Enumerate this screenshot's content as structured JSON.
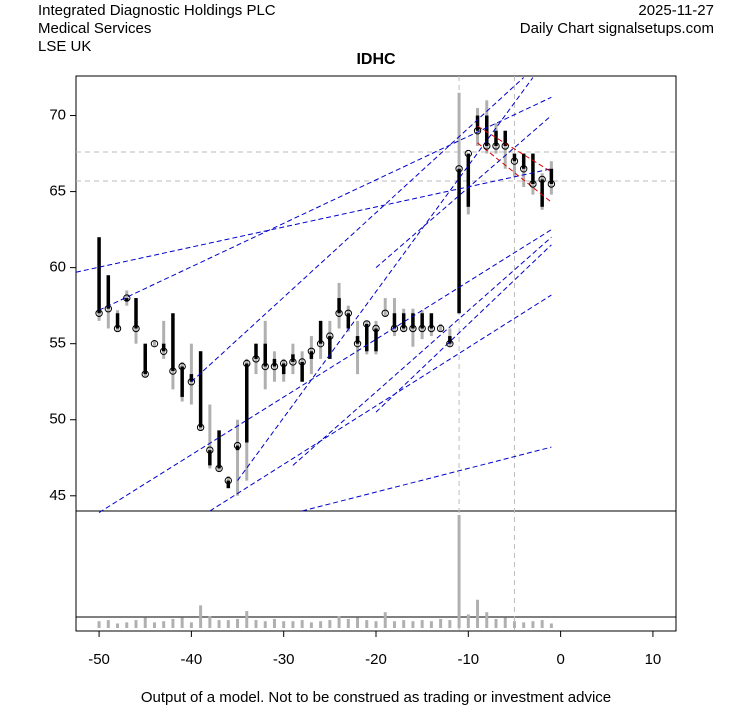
{
  "header": {
    "company": "Integrated Diagnostic Holdings PLC",
    "sector": "Medical Services",
    "exchange": "LSE UK",
    "date": "2025-11-27",
    "source": "Daily Chart signalsetups.com"
  },
  "footer": "Output of a model. Not to be construed as trading or investment advice",
  "chart_data": {
    "type": "candlestick",
    "title": "IDHC",
    "x": [
      -50,
      -49,
      -48,
      -47,
      -46,
      -45,
      -44,
      -43,
      -42,
      -41,
      -40,
      -39,
      -38,
      -37,
      -36,
      -35,
      -34,
      -33,
      -32,
      -31,
      -30,
      -29,
      -28,
      -27,
      -26,
      -25,
      -24,
      -23,
      -22,
      -21,
      -20,
      -19,
      -18,
      -17,
      -16,
      -15,
      -14,
      -13,
      -12,
      -11,
      -10,
      -9,
      -8,
      -7,
      -6,
      -5,
      -4,
      -3,
      -2,
      -1
    ],
    "open": [
      62,
      59.5,
      57,
      57.8,
      58,
      55,
      55,
      55,
      57,
      51.5,
      53,
      54.5,
      47,
      49.3,
      45.5,
      48,
      48.5,
      55,
      55,
      54,
      53,
      54.3,
      52.5,
      54,
      56.5,
      54,
      58,
      56,
      55.5,
      54.5,
      54.5,
      57,
      57,
      57,
      57,
      57,
      57,
      56,
      55.5,
      57,
      64,
      70,
      70,
      69,
      69,
      67.5,
      67.5,
      67.5,
      64,
      66.5
    ],
    "high": [
      62,
      59.5,
      57.2,
      58.5,
      58,
      55,
      55.2,
      56.5,
      57,
      53.8,
      55,
      54.5,
      51,
      49.3,
      46.3,
      50,
      54,
      55,
      56.5,
      54.5,
      54,
      55,
      54.5,
      55.5,
      56.5,
      56.5,
      59,
      57.5,
      56.5,
      56.5,
      56.5,
      58,
      58,
      57.3,
      57.3,
      57.2,
      57,
      56.3,
      56,
      71.5,
      67.5,
      70.5,
      71,
      69.5,
      69,
      67.5,
      67.5,
      67.5,
      66.2,
      67
    ],
    "low": [
      56.5,
      56,
      55.8,
      57.5,
      55,
      52.8,
      54.8,
      54,
      52,
      51.2,
      51,
      49.3,
      46.8,
      46.6,
      45.5,
      45,
      46,
      53,
      52,
      52.5,
      52.5,
      53,
      52.5,
      53,
      54,
      54,
      56,
      55.8,
      53,
      54.3,
      54.3,
      56.8,
      55.5,
      55.8,
      54.8,
      55.3,
      55.5,
      55.8,
      54.8,
      57,
      63.5,
      68,
      67.5,
      67.5,
      66.5,
      66,
      65.3,
      64.8,
      63.8,
      64.8
    ],
    "close": [
      57,
      57.3,
      56,
      58,
      56,
      53,
      55,
      54.5,
      53.2,
      53.5,
      52.5,
      49.5,
      48,
      46.8,
      46,
      48.3,
      53.7,
      54,
      53.5,
      53.5,
      53.7,
      53.8,
      53.8,
      54.5,
      55,
      55.5,
      57,
      57,
      55,
      56.3,
      56,
      57,
      56,
      56,
      56,
      56,
      56,
      56,
      55,
      66.5,
      67.5,
      69,
      68,
      68,
      68,
      67,
      66.5,
      65.5,
      65.8,
      65.5
    ],
    "volume": [
      6,
      7,
      4,
      5,
      7,
      9,
      5,
      6,
      8,
      9,
      5,
      20,
      10,
      7,
      7,
      8,
      15,
      7,
      6,
      8,
      6,
      6,
      7,
      5,
      6,
      7,
      10,
      8,
      9,
      7,
      6,
      14,
      6,
      7,
      6,
      7,
      6,
      8,
      7,
      100,
      12,
      25,
      14,
      8,
      9,
      6,
      5,
      6,
      7,
      4
    ],
    "volume_ylim": [
      0,
      100
    ],
    "xlim": [
      -52.5,
      12.5
    ],
    "xticks": [
      -50,
      -40,
      -30,
      -20,
      -10,
      0,
      10
    ],
    "ylim": [
      44,
      72.6
    ],
    "yticks": [
      45,
      50,
      55,
      60,
      65,
      70
    ],
    "trendlines": [
      [
        -52.5,
        59.7,
        -1,
        66.5
      ],
      [
        -50,
        57.2,
        -1,
        71.2
      ],
      [
        -50,
        43.9,
        -1,
        62.5
      ],
      [
        -38,
        44,
        -1,
        58.2
      ],
      [
        -28,
        44,
        -1,
        48.2
      ],
      [
        -40,
        52.5,
        -4,
        72.5
      ],
      [
        -35,
        46,
        -3,
        72.5
      ],
      [
        -20,
        60,
        -1,
        70
      ],
      [
        -29,
        47,
        -1,
        62
      ],
      [
        -20,
        50.5,
        -1,
        61.5
      ]
    ],
    "trendline_color": "#0000cc",
    "red_lines": [
      [
        -9,
        69.3,
        -1,
        66.3
      ],
      [
        -9,
        68.2,
        -1,
        64.3
      ]
    ],
    "red_color": "#dd0000",
    "vlines": [
      -11,
      -5
    ],
    "hlines": [
      67.6,
      65.7
    ],
    "body_color": "#000000",
    "wick_color": "#b0b0b0"
  }
}
